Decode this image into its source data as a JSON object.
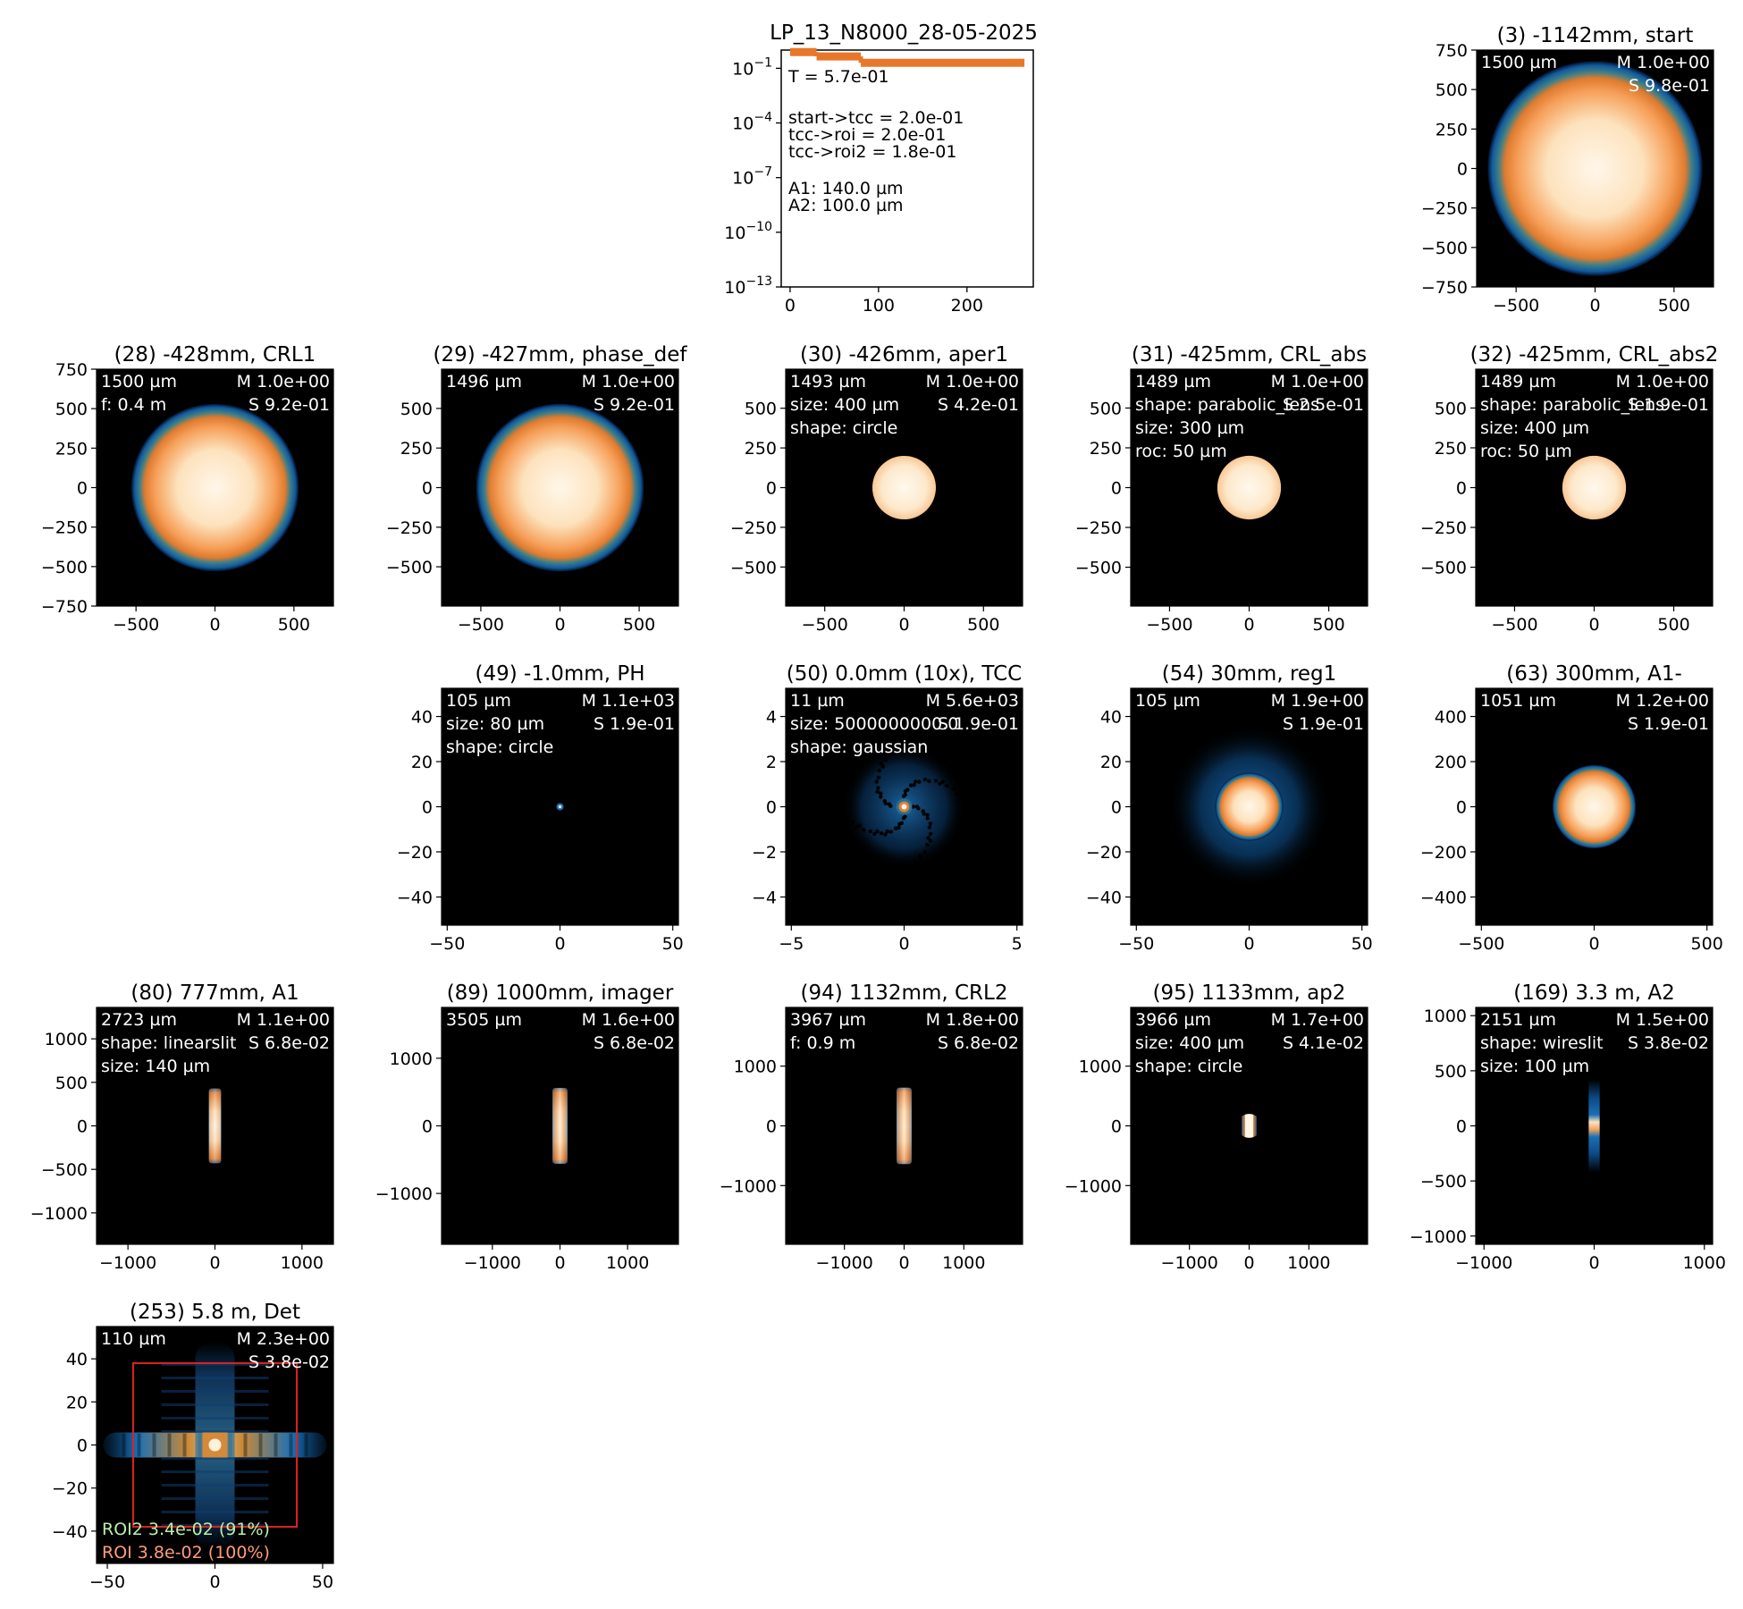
{
  "colors": {
    "orange": "#e8772a",
    "roi": "#dd2222",
    "roi2_text": "#b8f0a8",
    "roi_text": "#ff9c7a"
  },
  "chart_data": {
    "type": "figure",
    "figure_title": "LP_13_N8000_28-05-2025",
    "transmission": {
      "type": "line",
      "yscale": "log",
      "xlim": [
        -10,
        275
      ],
      "ylim": [
        1e-13,
        1
      ],
      "xticks": [
        "0",
        "100",
        "200"
      ],
      "yticks": [
        "10^-1",
        "10^-4",
        "10^-7",
        "10^-10",
        "10^-13"
      ],
      "segments": [
        {
          "x": [
            0,
            30
          ],
          "y": 0.78
        },
        {
          "x": [
            30,
            80
          ],
          "y": 0.45
        },
        {
          "x": [
            80,
            265
          ],
          "y": 0.2
        }
      ],
      "text": [
        "T = 5.7e-01",
        "start->tcc = 2.0e-01",
        "tcc->roi = 2.0e-01",
        "tcc->roi2 = 1.8e-01",
        "A1: 140.0 µm",
        "A2: 100.0 µm"
      ]
    },
    "panels": [
      {
        "title": "(3) -1142mm, start",
        "range": 750,
        "lim": 750,
        "shape": "disk",
        "radius": 680,
        "ring": true,
        "x_ticks": [
          "−500",
          "0",
          "500"
        ],
        "y_ticks": [
          "750",
          "500",
          "250",
          "0",
          "−250",
          "−500",
          "−750"
        ],
        "x_tick_values": [
          -500,
          0,
          500
        ],
        "y_tick_values": [
          750,
          500,
          250,
          0,
          -250,
          -500,
          -750
        ],
        "ann_left": [
          "1500 µm"
        ],
        "ann_right": [
          "M 1.0e+00",
          "S 9.8e-01"
        ]
      },
      {
        "title": "(28) -428mm, CRL1",
        "range": 750,
        "lim": 750,
        "shape": "disk",
        "radius": 530,
        "ring": true,
        "x_ticks": [
          "−500",
          "0",
          "500"
        ],
        "y_ticks": [
          "750",
          "500",
          "250",
          "0",
          "−250",
          "−500",
          "−750"
        ],
        "x_tick_values": [
          -500,
          0,
          500
        ],
        "y_tick_values": [
          750,
          500,
          250,
          0,
          -250,
          -500,
          -750
        ],
        "ann_left": [
          "1500 µm",
          "f: 0.4 m"
        ],
        "ann_right": [
          "M 1.0e+00",
          "S 9.2e-01"
        ]
      },
      {
        "title": "(29) -427mm, phase_def",
        "range": 748,
        "lim": 748,
        "shape": "disk",
        "radius": 530,
        "ring": true,
        "x_ticks": [
          "−500",
          "0",
          "500"
        ],
        "y_ticks": [
          "500",
          "250",
          "0",
          "−250",
          "−500"
        ],
        "x_tick_values": [
          -500,
          0,
          500
        ],
        "y_tick_values": [
          500,
          250,
          0,
          -250,
          -500
        ],
        "ann_left": [
          "1496 µm"
        ],
        "ann_right": [
          "M 1.0e+00",
          "S 9.2e-01"
        ]
      },
      {
        "title": "(30) -426mm, aper1",
        "range": 746,
        "lim": 746,
        "shape": "disk",
        "radius": 200,
        "ring": false,
        "x_ticks": [
          "−500",
          "0",
          "500"
        ],
        "y_ticks": [
          "500",
          "250",
          "0",
          "−250",
          "−500"
        ],
        "x_tick_values": [
          -500,
          0,
          500
        ],
        "y_tick_values": [
          500,
          250,
          0,
          -250,
          -500
        ],
        "ann_left": [
          "1493 µm",
          "size: 400 µm",
          "shape: circle"
        ],
        "ann_right": [
          "M 1.0e+00",
          "S 4.2e-01"
        ]
      },
      {
        "title": "(31) -425mm, CRL_abs",
        "range": 744,
        "lim": 744,
        "shape": "disk",
        "radius": 200,
        "ring": false,
        "x_ticks": [
          "−500",
          "0",
          "500"
        ],
        "y_ticks": [
          "500",
          "250",
          "0",
          "−250",
          "−500"
        ],
        "x_tick_values": [
          -500,
          0,
          500
        ],
        "y_tick_values": [
          500,
          250,
          0,
          -250,
          -500
        ],
        "ann_left": [
          "1489 µm",
          "shape: parabolic_lens",
          "size: 300 µm",
          "roc: 50 µm"
        ],
        "ann_right": [
          "M 1.0e+00",
          "S 2.5e-01"
        ]
      },
      {
        "title": "(32) -425mm, CRL_abs2",
        "range": 744,
        "lim": 744,
        "shape": "disk",
        "radius": 200,
        "ring": false,
        "x_ticks": [
          "−500",
          "0",
          "500"
        ],
        "y_ticks": [
          "500",
          "250",
          "0",
          "−250",
          "−500"
        ],
        "x_tick_values": [
          -500,
          0,
          500
        ],
        "y_tick_values": [
          500,
          250,
          0,
          -250,
          -500
        ],
        "ann_left": [
          "1489 µm",
          "shape: parabolic_lens",
          "size: 400 µm",
          "roc: 50 µm"
        ],
        "ann_right": [
          "M 1.0e+00",
          "S 1.9e-01"
        ]
      },
      {
        "title": "(49) -1.0mm, PH",
        "range": 52.5,
        "lim": 52.5,
        "shape": "dot",
        "radius": 1.5,
        "ring": false,
        "x_ticks": [
          "−50",
          "0",
          "50"
        ],
        "y_ticks": [
          "40",
          "20",
          "0",
          "−20",
          "−40"
        ],
        "x_tick_values": [
          -50,
          0,
          50
        ],
        "y_tick_values": [
          40,
          20,
          0,
          -20,
          -40
        ],
        "ann_left": [
          "105 µm",
          "size: 80 µm",
          "shape: circle"
        ],
        "ann_right": [
          "M 1.1e+03",
          "S 1.9e-01"
        ]
      },
      {
        "title": "(50) 0.0mm (10x), TCC",
        "range": 5.25,
        "lim": 5.25,
        "shape": "speckle",
        "radius": 2.7,
        "ring": false,
        "x_ticks": [
          "−5",
          "0",
          "5"
        ],
        "y_ticks": [
          "4",
          "2",
          "0",
          "−2",
          "−4"
        ],
        "x_tick_values": [
          -5,
          0,
          5
        ],
        "y_tick_values": [
          4,
          2,
          0,
          -2,
          -4
        ],
        "ann_left": [
          "11 µm",
          "size: 5000000000.0",
          "shape: gaussian"
        ],
        "ann_right": [
          "M 5.6e+03",
          "S 1.9e-01"
        ]
      },
      {
        "title": "(54) 30mm, reg1",
        "range": 52.5,
        "lim": 52.5,
        "shape": "halo",
        "radius": 15,
        "ring": true,
        "x_ticks": [
          "−50",
          "0",
          "50"
        ],
        "y_ticks": [
          "40",
          "20",
          "0",
          "−20",
          "−40"
        ],
        "x_tick_values": [
          -50,
          0,
          50
        ],
        "y_tick_values": [
          40,
          20,
          0,
          -20,
          -40
        ],
        "ann_left": [
          "105 µm"
        ],
        "ann_right": [
          "M 1.9e+00",
          "S 1.9e-01"
        ]
      },
      {
        "title": "(63) 300mm, A1-",
        "range": 525,
        "lim": 525,
        "shape": "disk",
        "radius": 185,
        "ring": true,
        "x_ticks": [
          "−500",
          "0",
          "500"
        ],
        "y_ticks": [
          "400",
          "200",
          "0",
          "−200",
          "−400"
        ],
        "x_tick_values": [
          -500,
          0,
          500
        ],
        "y_tick_values": [
          400,
          200,
          0,
          -200,
          -400
        ],
        "ann_left": [
          "1051 µm"
        ],
        "ann_right": [
          "M 1.2e+00",
          "S 1.9e-01"
        ]
      },
      {
        "title": "(80) 777mm, A1",
        "range": 1361,
        "lim": 1361,
        "shape": "slit",
        "half_width": 70,
        "half_height": 430,
        "ring": false,
        "x_ticks": [
          "−1000",
          "0",
          "1000"
        ],
        "y_ticks": [
          "1000",
          "500",
          "0",
          "−500",
          "−1000"
        ],
        "x_tick_values": [
          -1000,
          0,
          1000
        ],
        "y_tick_values": [
          1000,
          500,
          0,
          -500,
          -1000
        ],
        "ann_left": [
          "2723 µm",
          "shape: linearslit",
          "size: 140 µm"
        ],
        "ann_right": [
          "M 1.1e+00",
          "S 6.8e-02"
        ]
      },
      {
        "title": "(89) 1000mm, imager",
        "range": 1752,
        "lim": 1752,
        "shape": "slit",
        "half_width": 110,
        "half_height": 560,
        "ring": true,
        "x_ticks": [
          "−1000",
          "0",
          "1000"
        ],
        "y_ticks": [
          "1000",
          "0",
          "−1000"
        ],
        "x_tick_values": [
          -1000,
          0,
          1000
        ],
        "y_tick_values": [
          1000,
          0,
          -1000
        ],
        "ann_left": [
          "3505 µm"
        ],
        "ann_right": [
          "M 1.6e+00",
          "S 6.8e-02"
        ]
      },
      {
        "title": "(94) 1132mm, CRL2",
        "range": 1983,
        "lim": 1983,
        "shape": "slit",
        "half_width": 125,
        "half_height": 640,
        "ring": true,
        "x_ticks": [
          "−1000",
          "0",
          "1000"
        ],
        "y_ticks": [
          "1000",
          "0",
          "−1000"
        ],
        "x_tick_values": [
          -1000,
          0,
          1000
        ],
        "y_tick_values": [
          1000,
          0,
          -1000
        ],
        "ann_left": [
          "3967 µm",
          "f: 0.9 m"
        ],
        "ann_right": [
          "M 1.8e+00",
          "S 6.8e-02"
        ]
      },
      {
        "title": "(95) 1133mm, ap2",
        "range": 1983,
        "lim": 1983,
        "shape": "cutslit",
        "half_width": 125,
        "radius": 200,
        "ring": true,
        "x_ticks": [
          "−1000",
          "0",
          "1000"
        ],
        "y_ticks": [
          "1000",
          "0",
          "−1000"
        ],
        "x_tick_values": [
          -1000,
          0,
          1000
        ],
        "y_tick_values": [
          1000,
          0,
          -1000
        ],
        "ann_left": [
          "3966 µm",
          "size: 400 µm",
          "shape: circle"
        ],
        "ann_right": [
          "M 1.7e+00",
          "S 4.1e-02"
        ]
      },
      {
        "title": "(169) 3.3 m, A2",
        "range": 1075,
        "lim": 1075,
        "shape": "wire",
        "half_width": 50,
        "half_height": 420,
        "ring": false,
        "x_ticks": [
          "−1000",
          "0",
          "1000"
        ],
        "y_ticks": [
          "1000",
          "500",
          "0",
          "−500",
          "−1000"
        ],
        "x_tick_values": [
          -1000,
          0,
          1000
        ],
        "y_tick_values": [
          1000,
          500,
          0,
          -500,
          -1000
        ],
        "ann_left": [
          "2151 µm",
          "shape: wireslit",
          "size: 100 µm"
        ],
        "ann_right": [
          "M 1.5e+00",
          "S 3.8e-02"
        ]
      },
      {
        "title": "(253) 5.8 m, Det",
        "range": 55,
        "lim": 55,
        "shape": "cross",
        "ring": true,
        "x_ticks": [
          "−50",
          "0",
          "50"
        ],
        "y_ticks": [
          "40",
          "20",
          "0",
          "−20",
          "−40"
        ],
        "x_tick_values": [
          -50,
          0,
          50
        ],
        "y_tick_values": [
          40,
          20,
          0,
          -20,
          -40
        ],
        "roi_box": [
          -38,
          38
        ],
        "ann_left": [
          "110 µm"
        ],
        "ann_right": [
          "M 2.3e+00",
          "S 3.8e-02"
        ],
        "roi2_label": "ROI2 3.4e-02 (91%)",
        "roi_label": "ROI 3.8e-02 (100%)"
      }
    ]
  }
}
